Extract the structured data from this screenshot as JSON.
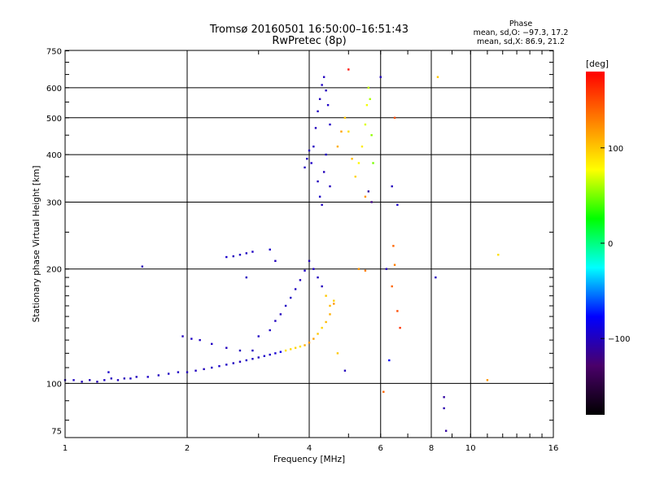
{
  "chart_data": {
    "type": "scatter",
    "title": "Tromsø 20160501 16:50:00–16:51:43",
    "subtitle": "RwPretec (8p)",
    "xlabel": "Frequency [MHz]",
    "ylabel": "Stationary phase Virtual Height [km]",
    "x_scale": "log",
    "y_scale": "log",
    "xlim": [
      1,
      16
    ],
    "ylim": [
      72,
      752
    ],
    "x_ticks": [
      1,
      2,
      4,
      6,
      8,
      10,
      16
    ],
    "x_tick_labels": [
      "1",
      "2",
      "4",
      "6",
      "8",
      "10",
      "16"
    ],
    "y_ticks": [
      75,
      100,
      200,
      300,
      400,
      500,
      600,
      750
    ],
    "y_tick_labels": [
      "75",
      "100",
      "200",
      "300",
      "400",
      "500",
      "600",
      "750"
    ],
    "grid": true,
    "stats_header": "Phase",
    "stats_lines": [
      "mean, sd,O: −97.3, 17.2",
      "mean, sd,X:  86.9, 21.2"
    ],
    "colorbar": {
      "label": "[deg]",
      "range": [
        -180,
        180
      ],
      "ticks": [
        100,
        0,
        -100
      ],
      "tick_labels": [
        "100",
        "0",
        "−100"
      ],
      "colors": [
        "#000000",
        "#4a006a",
        "#0000ff",
        "#00ffff",
        "#00ff00",
        "#ffff00",
        "#ff8000",
        "#ff0000"
      ]
    },
    "series": [
      {
        "points": [
          [
            1.0,
            102,
            -100
          ],
          [
            1.05,
            102,
            -98
          ],
          [
            1.1,
            101,
            -101
          ],
          [
            1.15,
            102,
            -99
          ],
          [
            1.2,
            101,
            -102
          ],
          [
            1.25,
            102,
            -97
          ],
          [
            1.28,
            107,
            -95
          ],
          [
            1.3,
            103,
            -100
          ],
          [
            1.35,
            102,
            -99
          ],
          [
            1.4,
            103,
            -101
          ],
          [
            1.45,
            103,
            -98
          ],
          [
            1.5,
            104,
            -100
          ],
          [
            1.6,
            104,
            -96
          ],
          [
            1.7,
            105,
            -100
          ],
          [
            1.8,
            106,
            -98
          ],
          [
            1.9,
            107,
            -97
          ],
          [
            2.0,
            107,
            -100
          ],
          [
            2.1,
            108,
            -99
          ],
          [
            2.2,
            109,
            -101
          ],
          [
            2.3,
            110,
            -98
          ],
          [
            2.4,
            111,
            -95
          ],
          [
            2.5,
            112,
            -97
          ],
          [
            2.6,
            113,
            -99
          ],
          [
            2.7,
            114,
            -100
          ],
          [
            2.8,
            115,
            -96
          ],
          [
            2.9,
            116,
            -98
          ],
          [
            3.0,
            117,
            -100
          ],
          [
            3.1,
            118,
            -95
          ],
          [
            3.2,
            119,
            -97
          ],
          [
            3.3,
            120,
            -92
          ],
          [
            3.4,
            121,
            -85
          ],
          [
            3.5,
            122,
            90
          ],
          [
            3.6,
            123,
            92
          ],
          [
            3.7,
            124,
            95
          ],
          [
            3.8,
            125,
            88
          ],
          [
            3.9,
            126,
            110
          ],
          [
            4.0,
            128,
            120
          ],
          [
            4.1,
            131,
            115
          ],
          [
            4.2,
            135,
            100
          ],
          [
            4.3,
            140,
            95
          ],
          [
            4.4,
            145,
            105
          ],
          [
            4.5,
            152,
            110
          ],
          [
            4.6,
            162,
            120
          ],
          [
            1.95,
            133,
            -100
          ],
          [
            2.05,
            131,
            -97
          ],
          [
            2.15,
            130,
            -99
          ],
          [
            2.3,
            127,
            -98
          ],
          [
            2.5,
            124,
            -100
          ],
          [
            2.7,
            122,
            -101
          ],
          [
            2.9,
            122,
            -99
          ],
          [
            3.0,
            133,
            -98
          ],
          [
            3.2,
            138,
            -97
          ],
          [
            3.3,
            146,
            -99
          ],
          [
            3.4,
            152,
            -100
          ],
          [
            3.5,
            160,
            -98
          ],
          [
            3.6,
            168,
            -97
          ],
          [
            3.7,
            177,
            -99
          ],
          [
            3.8,
            187,
            -100
          ],
          [
            3.9,
            198,
            -98
          ],
          [
            4.0,
            210,
            -101
          ],
          [
            4.1,
            200,
            -97
          ],
          [
            4.2,
            190,
            -99
          ],
          [
            4.3,
            180,
            -100
          ],
          [
            4.4,
            170,
            100
          ],
          [
            4.5,
            160,
            105
          ],
          [
            4.6,
            165,
            95
          ],
          [
            2.5,
            215,
            -95
          ],
          [
            2.6,
            216,
            -100
          ],
          [
            2.7,
            218,
            -97
          ],
          [
            2.8,
            220,
            -99
          ],
          [
            2.9,
            222,
            -98
          ],
          [
            3.2,
            225,
            -96
          ],
          [
            1.55,
            203,
            -102
          ],
          [
            2.8,
            190,
            -99
          ],
          [
            3.3,
            210,
            -100
          ],
          [
            3.9,
            370,
            -100
          ],
          [
            3.95,
            390,
            -98
          ],
          [
            4.0,
            410,
            -101
          ],
          [
            4.05,
            380,
            -97
          ],
          [
            4.1,
            420,
            -99
          ],
          [
            4.15,
            470,
            -100
          ],
          [
            4.2,
            520,
            -98
          ],
          [
            4.25,
            560,
            -101
          ],
          [
            4.3,
            610,
            -97
          ],
          [
            4.35,
            640,
            -99
          ],
          [
            4.4,
            590,
            -100
          ],
          [
            4.45,
            540,
            -96
          ],
          [
            4.5,
            480,
            -98
          ],
          [
            4.2,
            340,
            -100
          ],
          [
            4.25,
            310,
            -97
          ],
          [
            4.3,
            295,
            -99
          ],
          [
            4.35,
            360,
            -101
          ],
          [
            4.4,
            400,
            -98
          ],
          [
            4.5,
            330,
            -100
          ],
          [
            4.7,
            420,
            110
          ],
          [
            4.8,
            460,
            115
          ],
          [
            4.9,
            500,
            100
          ],
          [
            5.0,
            460,
            90
          ],
          [
            5.1,
            390,
            105
          ],
          [
            5.2,
            350,
            95
          ],
          [
            5.3,
            380,
            80
          ],
          [
            5.4,
            420,
            85
          ],
          [
            5.5,
            480,
            70
          ],
          [
            5.55,
            540,
            75
          ],
          [
            5.6,
            600,
            65
          ],
          [
            5.65,
            560,
            60
          ],
          [
            5.7,
            450,
            55
          ],
          [
            5.75,
            380,
            50
          ],
          [
            5.6,
            320,
            -110
          ],
          [
            5.7,
            300,
            -120
          ],
          [
            5.5,
            310,
            120
          ],
          [
            5.0,
            670,
            175
          ],
          [
            6.0,
            640,
            -100
          ],
          [
            6.5,
            500,
            150
          ],
          [
            6.4,
            330,
            -100
          ],
          [
            6.6,
            295,
            -95
          ],
          [
            6.45,
            230,
            140
          ],
          [
            6.5,
            205,
            130
          ],
          [
            6.4,
            180,
            140
          ],
          [
            6.2,
            200,
            -100
          ],
          [
            6.6,
            155,
            150
          ],
          [
            6.7,
            140,
            160
          ],
          [
            6.1,
            95,
            140
          ],
          [
            6.3,
            115,
            -80
          ],
          [
            4.9,
            108,
            -100
          ],
          [
            4.7,
            120,
            100
          ],
          [
            5.3,
            200,
            120
          ],
          [
            5.5,
            198,
            130
          ],
          [
            8.3,
            640,
            100
          ],
          [
            8.2,
            190,
            -100
          ],
          [
            8.6,
            92,
            -110
          ],
          [
            8.6,
            86,
            -105
          ],
          [
            8.7,
            75,
            -110
          ],
          [
            11.0,
            102,
            120
          ],
          [
            11.7,
            218,
            90
          ]
        ]
      }
    ]
  }
}
